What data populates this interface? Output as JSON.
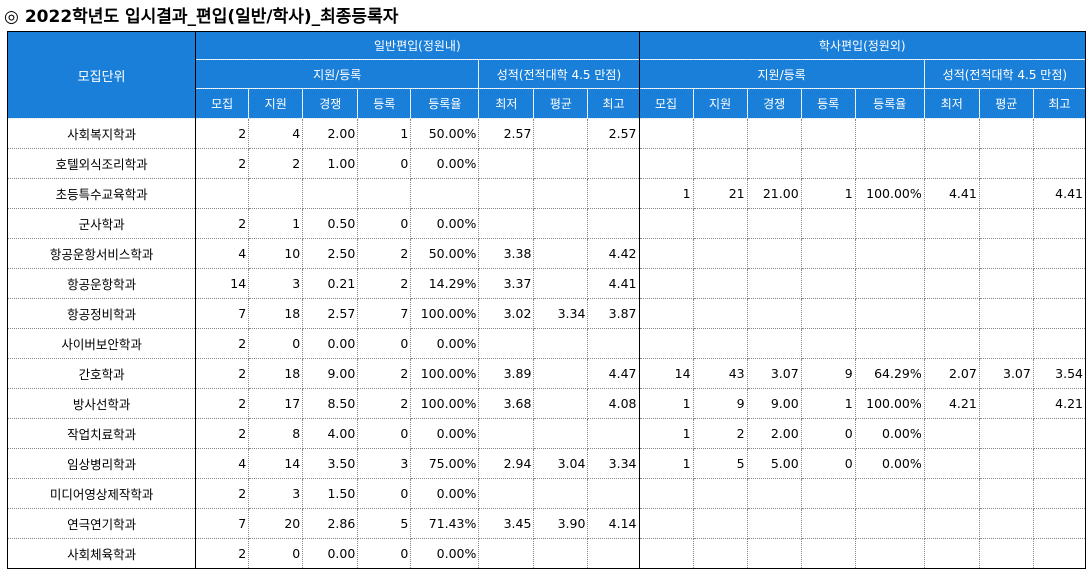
{
  "title": {
    "mark": "◎",
    "text": "2022학년도 입시결과_편입(일반/학사)_최종등록자"
  },
  "header": {
    "unit_label": "모집단위",
    "group_general": "일반편입(정원내)",
    "group_bachelor": "학사편입(정원외)",
    "sub_apply": "지원/등록",
    "sub_grade": "성적(전적대학 4.5 만점)",
    "columns": [
      "모집",
      "지원",
      "경쟁",
      "등록",
      "등록율",
      "최저",
      "평균",
      "최고",
      "모집",
      "지원",
      "경쟁",
      "등록",
      "등록율",
      "최저",
      "평균",
      "최고"
    ]
  },
  "rows": [
    {
      "name": "사회복지학과",
      "cells": [
        "2",
        "4",
        "2.00",
        "1",
        "50.00%",
        "2.57",
        "",
        "2.57",
        "",
        "",
        "",
        "",
        "",
        "",
        "",
        ""
      ]
    },
    {
      "name": "호텔외식조리학과",
      "cells": [
        "2",
        "2",
        "1.00",
        "0",
        "0.00%",
        "",
        "",
        "",
        "",
        "",
        "",
        "",
        "",
        "",
        "",
        ""
      ]
    },
    {
      "name": "초등특수교육학과",
      "cells": [
        "",
        "",
        "",
        "",
        "",
        "",
        "",
        "",
        "1",
        "21",
        "21.00",
        "1",
        "100.00%",
        "4.41",
        "",
        "4.41"
      ]
    },
    {
      "name": "군사학과",
      "cells": [
        "2",
        "1",
        "0.50",
        "0",
        "0.00%",
        "",
        "",
        "",
        "",
        "",
        "",
        "",
        "",
        "",
        "",
        ""
      ]
    },
    {
      "name": "항공운항서비스학과",
      "cells": [
        "4",
        "10",
        "2.50",
        "2",
        "50.00%",
        "3.38",
        "",
        "4.42",
        "",
        "",
        "",
        "",
        "",
        "",
        "",
        ""
      ]
    },
    {
      "name": "항공운항학과",
      "cells": [
        "14",
        "3",
        "0.21",
        "2",
        "14.29%",
        "3.37",
        "",
        "4.41",
        "",
        "",
        "",
        "",
        "",
        "",
        "",
        ""
      ]
    },
    {
      "name": "항공정비학과",
      "cells": [
        "7",
        "18",
        "2.57",
        "7",
        "100.00%",
        "3.02",
        "3.34",
        "3.87",
        "",
        "",
        "",
        "",
        "",
        "",
        "",
        ""
      ]
    },
    {
      "name": "사이버보안학과",
      "cells": [
        "2",
        "0",
        "0.00",
        "0",
        "0.00%",
        "",
        "",
        "",
        "",
        "",
        "",
        "",
        "",
        "",
        "",
        ""
      ]
    },
    {
      "name": "간호학과",
      "cells": [
        "2",
        "18",
        "9.00",
        "2",
        "100.00%",
        "3.89",
        "",
        "4.47",
        "14",
        "43",
        "3.07",
        "9",
        "64.29%",
        "2.07",
        "3.07",
        "3.54"
      ]
    },
    {
      "name": "방사선학과",
      "cells": [
        "2",
        "17",
        "8.50",
        "2",
        "100.00%",
        "3.68",
        "",
        "4.08",
        "1",
        "9",
        "9.00",
        "1",
        "100.00%",
        "4.21",
        "",
        "4.21"
      ]
    },
    {
      "name": "작업치료학과",
      "cells": [
        "2",
        "8",
        "4.00",
        "0",
        "0.00%",
        "",
        "",
        "",
        "1",
        "2",
        "2.00",
        "0",
        "0.00%",
        "",
        "",
        ""
      ]
    },
    {
      "name": "임상병리학과",
      "cells": [
        "4",
        "14",
        "3.50",
        "3",
        "75.00%",
        "2.94",
        "3.04",
        "3.34",
        "1",
        "5",
        "5.00",
        "0",
        "0.00%",
        "",
        "",
        ""
      ]
    },
    {
      "name": "미디어영상제작학과",
      "cells": [
        "2",
        "3",
        "1.50",
        "0",
        "0.00%",
        "",
        "",
        "",
        "",
        "",
        "",
        "",
        "",
        "",
        "",
        ""
      ]
    },
    {
      "name": "연극연기학과",
      "cells": [
        "7",
        "20",
        "2.86",
        "5",
        "71.43%",
        "3.45",
        "3.90",
        "4.14",
        "",
        "",
        "",
        "",
        "",
        "",
        "",
        ""
      ]
    },
    {
      "name": "사회체육학과",
      "cells": [
        "2",
        "0",
        "0.00",
        "0",
        "0.00%",
        "",
        "",
        "",
        "",
        "",
        "",
        "",
        "",
        "",
        "",
        ""
      ]
    }
  ]
}
